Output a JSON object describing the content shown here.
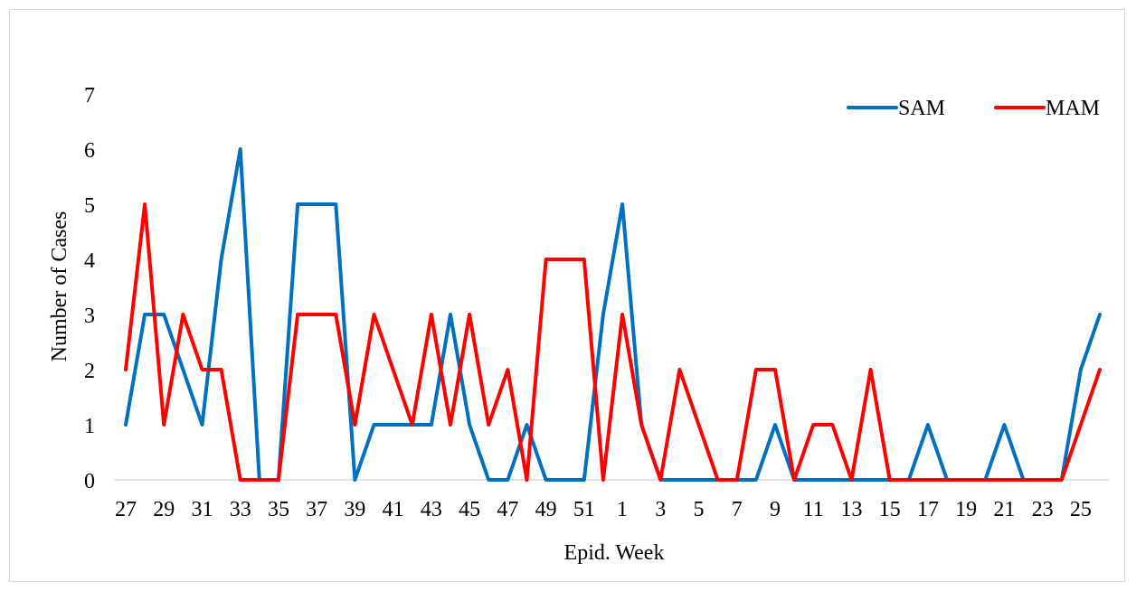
{
  "chart_data": {
    "type": "line",
    "title": "",
    "xlabel": "Epid. Week",
    "ylabel": "Number of Cases",
    "ylim": [
      0,
      7
    ],
    "yticks": [
      "0",
      "1",
      "2",
      "3",
      "4",
      "5",
      "6",
      "7"
    ],
    "grid": "horizontal baseline only",
    "legend": "top-right",
    "categories": [
      "27",
      "28",
      "29",
      "30",
      "31",
      "32",
      "33",
      "34",
      "35",
      "36",
      "37",
      "38",
      "39",
      "40",
      "41",
      "42",
      "43",
      "44",
      "45",
      "46",
      "47",
      "48",
      "49",
      "50",
      "51",
      "52",
      "1",
      "2",
      "3",
      "4",
      "5",
      "6",
      "7",
      "8",
      "9",
      "10",
      "11",
      "12",
      "13",
      "14",
      "15",
      "16",
      "17",
      "18",
      "19",
      "20",
      "21",
      "22",
      "23",
      "24",
      "25",
      "26"
    ],
    "tick_labels": [
      "27",
      "29",
      "31",
      "33",
      "35",
      "37",
      "39",
      "41",
      "43",
      "45",
      "47",
      "49",
      "51",
      "1",
      "3",
      "5",
      "7",
      "9",
      "11",
      "13",
      "15",
      "17",
      "19",
      "21",
      "23",
      "25"
    ],
    "series": [
      {
        "name": "SAM",
        "color": "#0070C0",
        "values": [
          1,
          3,
          3,
          2,
          1,
          4,
          6,
          0,
          0,
          5,
          5,
          5,
          0,
          1,
          1,
          1,
          1,
          3,
          1,
          0,
          0,
          1,
          0,
          0,
          0,
          3,
          5,
          1,
          0,
          0,
          0,
          0,
          0,
          0,
          1,
          0,
          0,
          0,
          0,
          0,
          0,
          0,
          1,
          0,
          0,
          0,
          1,
          0,
          0,
          0,
          2,
          3
        ]
      },
      {
        "name": "MAM",
        "color": "#FF0000",
        "values": [
          2,
          5,
          1,
          3,
          2,
          2,
          0,
          0,
          0,
          3,
          3,
          3,
          1,
          3,
          2,
          1,
          3,
          1,
          3,
          1,
          2,
          0,
          4,
          4,
          4,
          0,
          3,
          1,
          0,
          2,
          1,
          0,
          0,
          2,
          2,
          0,
          1,
          1,
          0,
          2,
          0,
          0,
          0,
          0,
          0,
          0,
          0,
          0,
          0,
          0,
          1,
          2
        ]
      }
    ]
  }
}
